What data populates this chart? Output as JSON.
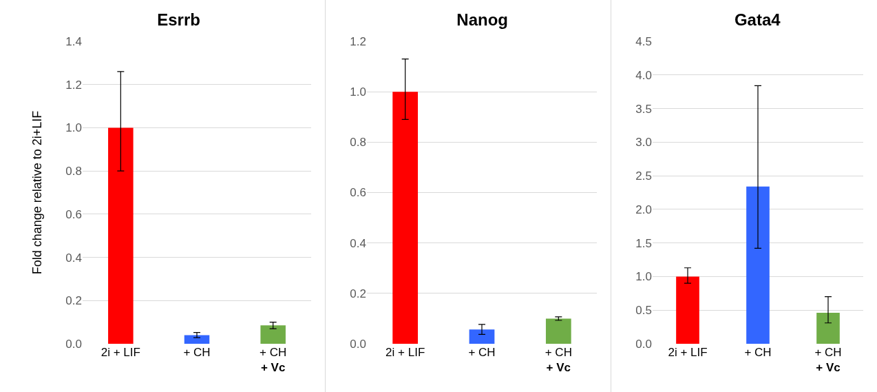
{
  "chart_data": [
    {
      "type": "bar",
      "title": "Esrrb",
      "ylabel": "Fold change relative to 2i+LIF",
      "categories": [
        "2i + LIF",
        "+ CH",
        "+ CH\n+ Vc"
      ],
      "values": [
        1.0,
        0.04,
        0.085
      ],
      "colors": [
        "#ff0000",
        "#3366ff",
        "#70ad47"
      ],
      "errors": [
        [
          0.8,
          1.26
        ],
        0.012,
        0.015
      ],
      "ylim": [
        0,
        1.4
      ],
      "yticks": [
        {
          "value": 0,
          "label": "0.0"
        },
        0.2,
        0.4,
        0.6,
        0.8,
        {
          "value": 1,
          "label": "1.0"
        },
        1.2,
        1.4
      ],
      "grid": "y"
    },
    {
      "type": "bar",
      "title": "Nanog",
      "categories": [
        "2i + LIF",
        "+ CH",
        "+ CH\n+ Vc"
      ],
      "values": [
        1.0,
        0.057,
        0.1
      ],
      "colors": [
        "#ff0000",
        "#3366ff",
        "#70ad47"
      ],
      "errors": [
        [
          0.89,
          1.13
        ],
        0.02,
        0.007
      ],
      "ylim": [
        0,
        1.2
      ],
      "yticks": [
        {
          "value": 0,
          "label": "0.0"
        },
        0.2,
        0.4,
        0.6,
        0.8,
        {
          "value": 1,
          "label": "1.0"
        },
        1.2
      ],
      "grid": "y"
    },
    {
      "type": "bar",
      "title": "Gata4",
      "categories": [
        "2i + LIF",
        "+ CH",
        "+ CH\n+ Vc"
      ],
      "values": [
        1.0,
        2.34,
        0.46
      ],
      "colors": [
        "#ff0000",
        "#3366ff",
        "#70ad47"
      ],
      "errors": [
        [
          0.9,
          1.13
        ],
        [
          1.42,
          3.84
        ],
        [
          0.31,
          0.7
        ]
      ],
      "ylim": [
        0,
        4.5
      ],
      "yticks": [
        {
          "value": 0,
          "label": "0.0"
        },
        0.5,
        {
          "value": 1,
          "label": "1.0"
        },
        1.5,
        {
          "value": 2,
          "label": "2.0"
        },
        2.5,
        {
          "value": 3,
          "label": "3.0"
        },
        3.5,
        {
          "value": 4,
          "label": "4.0"
        },
        4.5
      ],
      "grid": "y"
    }
  ]
}
